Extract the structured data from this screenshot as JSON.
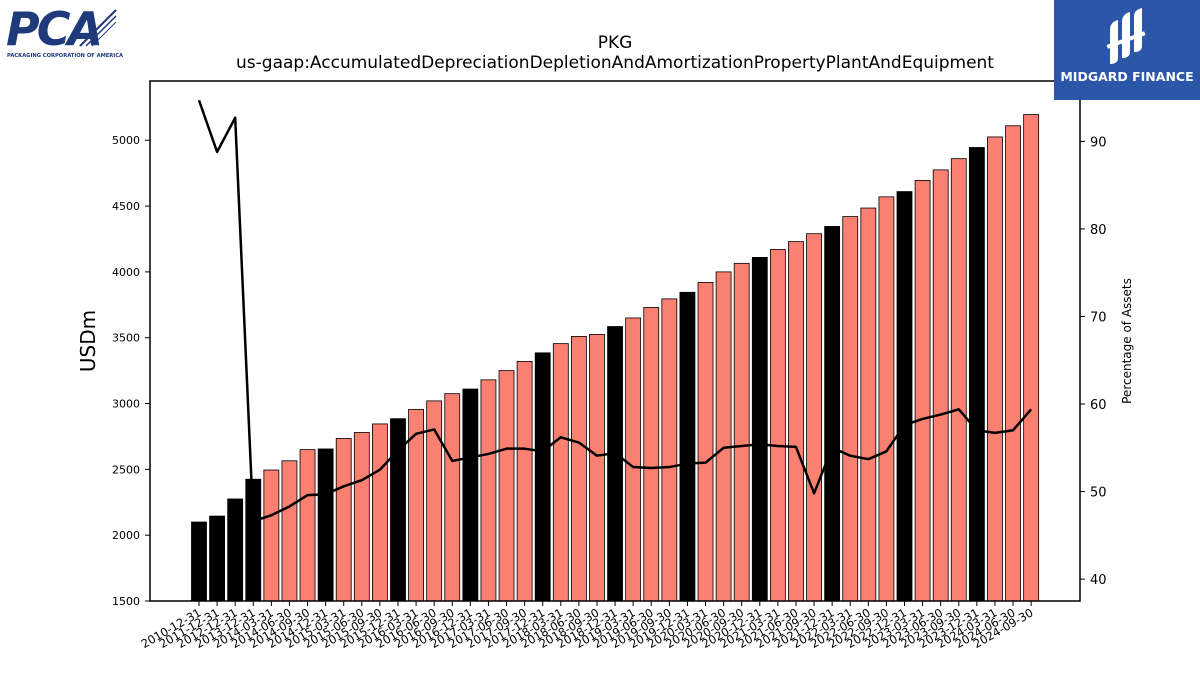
{
  "logos": {
    "left_letters": "PCA",
    "left_subtitle": "PACKAGING CORPORATION OF AMERICA",
    "right_text": "MIDGARD FINANCE"
  },
  "colors": {
    "annual_bar": "#000000",
    "quarterly_bar": "#fa8072",
    "line": "#000000",
    "logo_left": "#1f3a7a",
    "logo_right_bg": "#2c56a8"
  },
  "chart_data": {
    "type": "bar",
    "title": "PKG",
    "subtitle": "us-gaap:AccumulatedDepreciationDepletionAndAmortizationPropertyPlantAndEquipment",
    "ylabel": "USDm",
    "y2label": "Percentage of Assets",
    "ylim": [
      1500,
      5450
    ],
    "y2lim": [
      37.5,
      96.9
    ],
    "yticks": [
      1500,
      2000,
      2500,
      3000,
      3500,
      4000,
      4500,
      5000
    ],
    "y2ticks": [
      40,
      50,
      60,
      70,
      80,
      90
    ],
    "categories": [
      "2010-12-31",
      "2011-12-31",
      "2012-12-31",
      "2013-12-31",
      "2014-03-31",
      "2014-06-30",
      "2014-09-30",
      "2014-12-31",
      "2015-03-31",
      "2015-06-30",
      "2015-09-30",
      "2015-12-31",
      "2016-03-31",
      "2016-06-30",
      "2016-09-30",
      "2016-12-31",
      "2017-03-31",
      "2017-06-30",
      "2017-09-30",
      "2017-12-31",
      "2018-03-31",
      "2018-06-30",
      "2018-09-30",
      "2018-12-31",
      "2019-03-31",
      "2019-06-30",
      "2019-09-30",
      "2019-12-31",
      "2020-03-31",
      "2020-06-30",
      "2020-09-30",
      "2020-12-31",
      "2021-03-31",
      "2021-06-30",
      "2021-09-30",
      "2021-12-31",
      "2022-03-31",
      "2022-06-30",
      "2022-09-30",
      "2022-12-31",
      "2023-03-31",
      "2023-06-30",
      "2023-09-30",
      "2023-12-31",
      "2024-03-31",
      "2024-06-30",
      "2024-09-30"
    ],
    "series": [
      {
        "kind": "bar",
        "axis": "left",
        "values": [
          2100,
          2145,
          2275,
          2425,
          2495,
          2565,
          2650,
          2655,
          2735,
          2780,
          2845,
          2885,
          2955,
          3020,
          3075,
          3110,
          3180,
          3250,
          3320,
          3385,
          3455,
          3510,
          3525,
          3585,
          3650,
          3730,
          3795,
          3845,
          3920,
          4000,
          4065,
          4110,
          4170,
          4230,
          4290,
          4345,
          4420,
          4485,
          4570,
          4610,
          4695,
          4775,
          4860,
          4945,
          5025,
          5110,
          5195
        ],
        "annual": [
          true,
          true,
          true,
          true,
          false,
          false,
          false,
          true,
          false,
          false,
          false,
          true,
          false,
          false,
          false,
          true,
          false,
          false,
          false,
          true,
          false,
          false,
          false,
          true,
          false,
          false,
          false,
          true,
          false,
          false,
          false,
          true,
          false,
          false,
          false,
          true,
          false,
          false,
          false,
          true,
          false,
          false,
          false,
          true,
          false,
          false,
          false
        ]
      },
      {
        "kind": "line",
        "axis": "right",
        "values": [
          94.7,
          88.8,
          92.7,
          46.6,
          47.3,
          48.3,
          49.6,
          49.7,
          50.6,
          51.3,
          52.5,
          54.7,
          56.6,
          57.1,
          53.5,
          53.9,
          54.3,
          54.9,
          54.9,
          54.6,
          56.2,
          55.6,
          54.1,
          54.4,
          52.8,
          52.7,
          52.8,
          53.2,
          53.3,
          55.0,
          55.2,
          55.4,
          55.2,
          55.1,
          49.8,
          55.0,
          54.1,
          53.7,
          54.6,
          57.6,
          58.3,
          58.8,
          59.4,
          57.0,
          56.7,
          57.0,
          59.4
        ]
      }
    ]
  }
}
